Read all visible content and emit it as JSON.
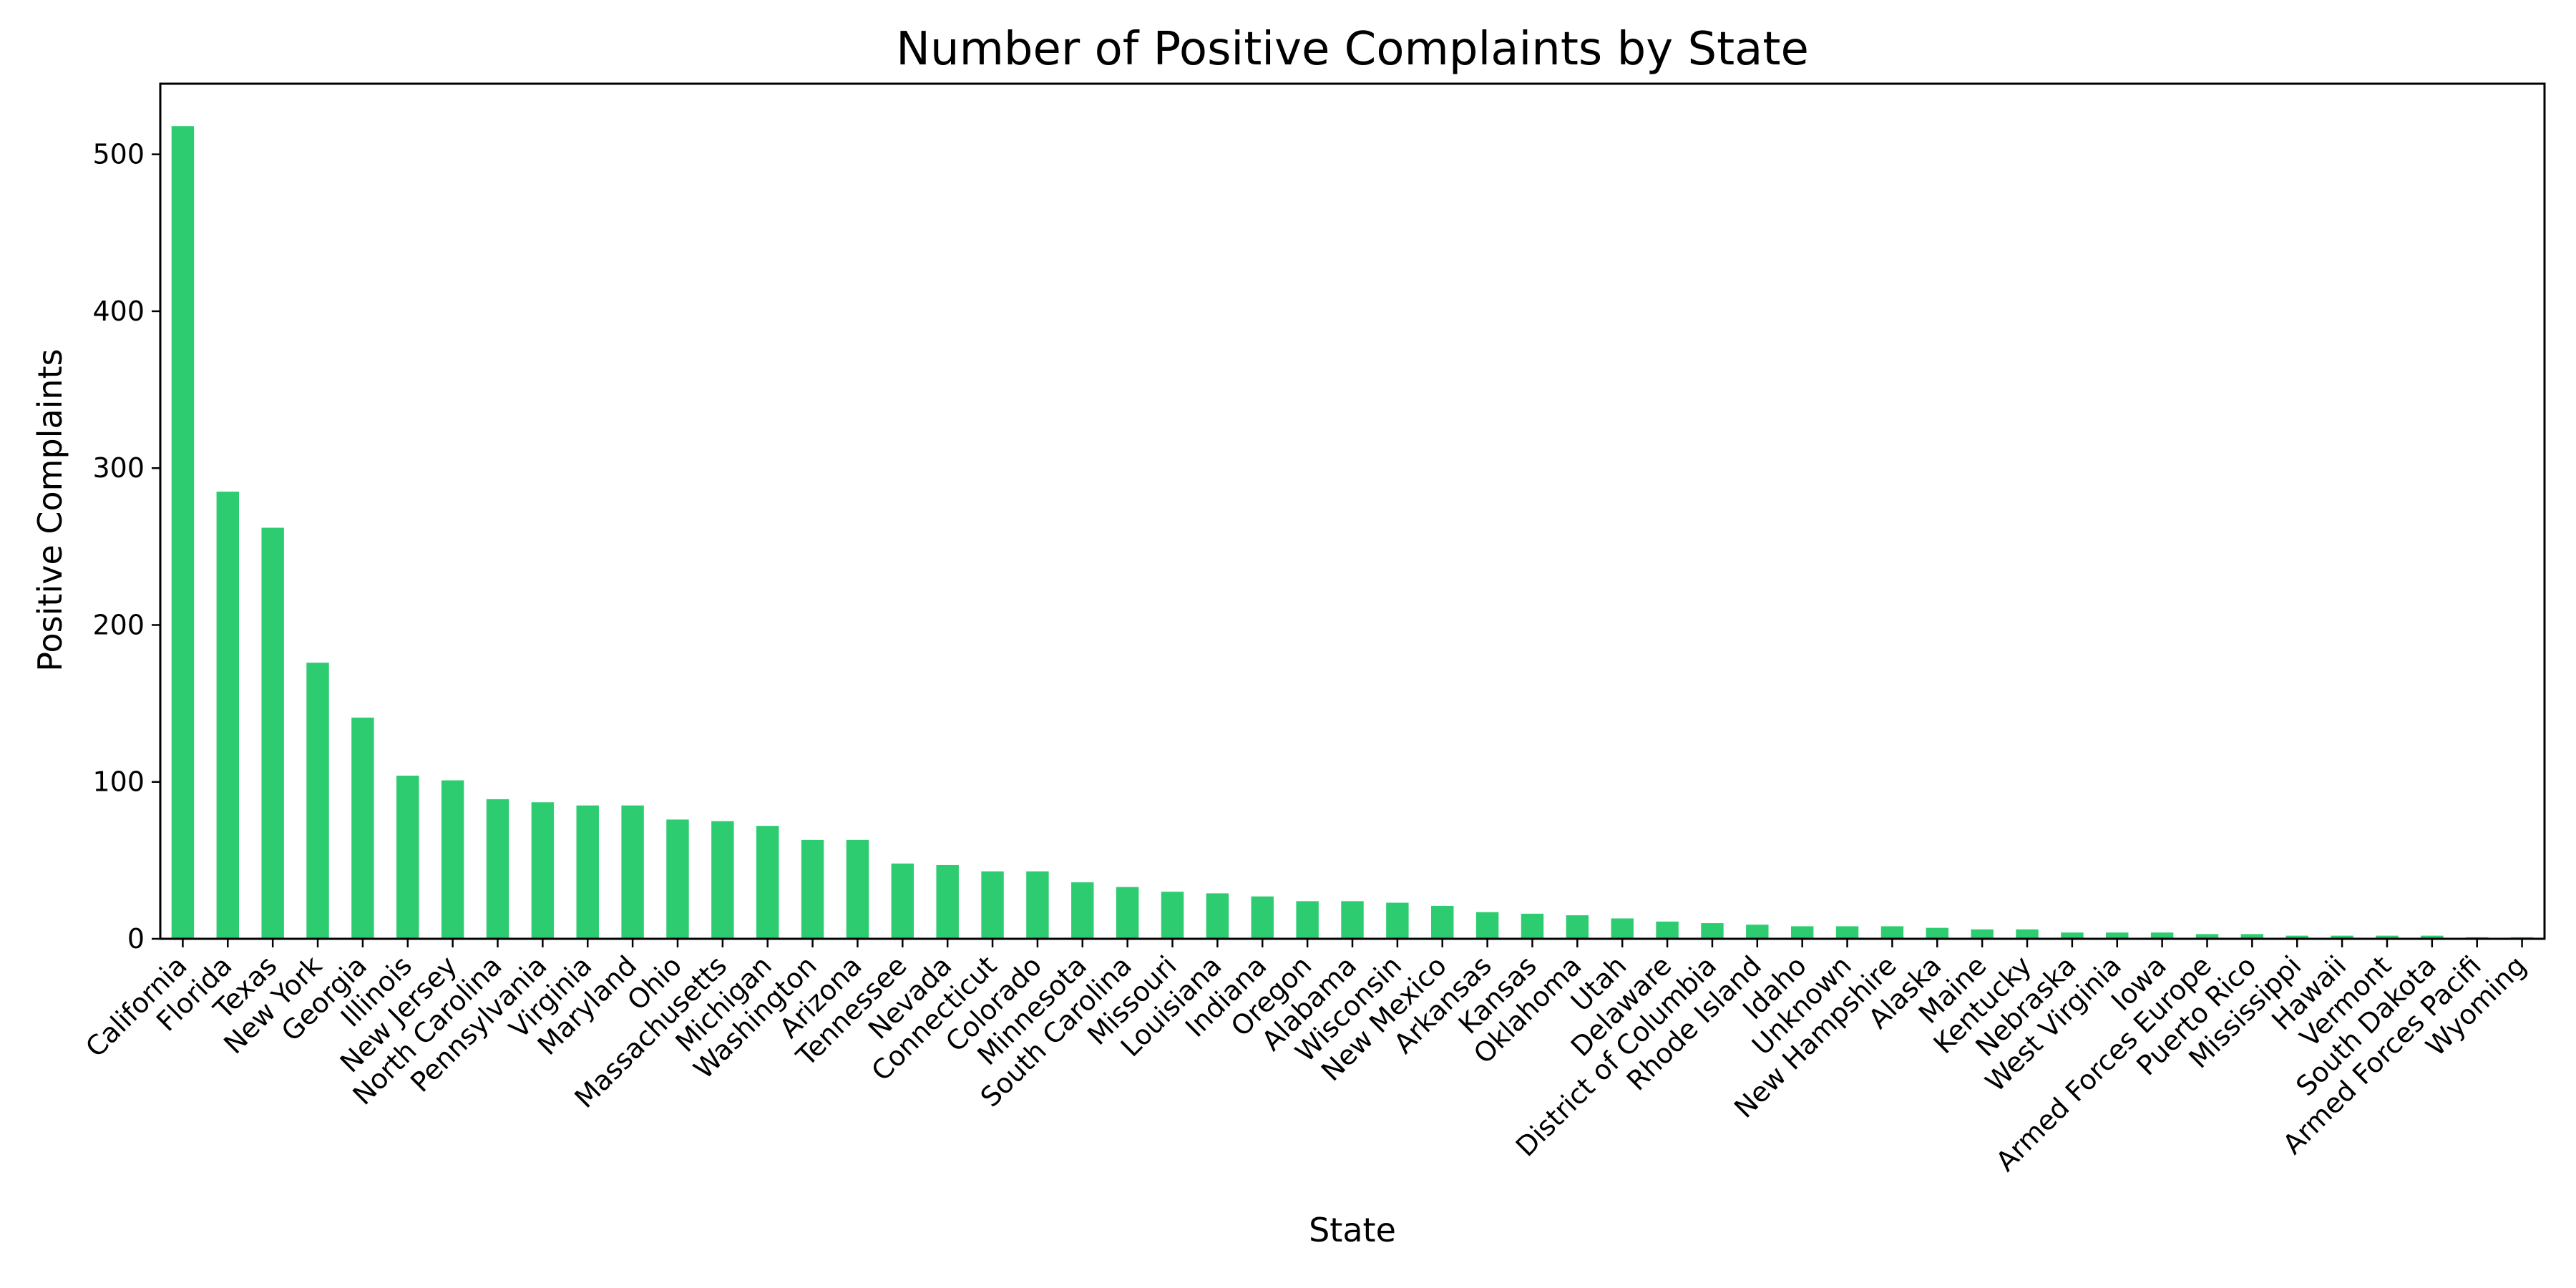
{
  "colors": {
    "bar": "#2ecc71",
    "axis": "#000000",
    "background": "#ffffff"
  },
  "chart_data": {
    "type": "bar",
    "title": "Number of Positive Complaints by State",
    "xlabel": "State",
    "ylabel": "Positive Complaints",
    "ylim": [
      0,
      545
    ],
    "yticks": [
      0,
      100,
      200,
      300,
      400,
      500
    ],
    "grid": false,
    "legend": "none",
    "categories": [
      "California",
      "Florida",
      "Texas",
      "New York",
      "Georgia",
      "Illinois",
      "New Jersey",
      "North Carolina",
      "Pennsylvania",
      "Virginia",
      "Maryland",
      "Ohio",
      "Massachusetts",
      "Michigan",
      "Washington",
      "Arizona",
      "Tennessee",
      "Nevada",
      "Connecticut",
      "Colorado",
      "Minnesota",
      "South Carolina",
      "Missouri",
      "Louisiana",
      "Indiana",
      "Oregon",
      "Alabama",
      "Wisconsin",
      "New Mexico",
      "Arkansas",
      "Kansas",
      "Oklahoma",
      "Utah",
      "Delaware",
      "District of Columbia",
      "Rhode Island",
      "Idaho",
      "Unknown",
      "New Hampshire",
      "Alaska",
      "Maine",
      "Kentucky",
      "Nebraska",
      "West Virginia",
      "Iowa",
      "Armed Forces Europe",
      "Puerto Rico",
      "Mississippi",
      "Hawaii",
      "Vermont",
      "South Dakota",
      "Armed Forces Pacifi",
      "Wyoming"
    ],
    "values": [
      518,
      285,
      262,
      176,
      141,
      104,
      101,
      89,
      87,
      85,
      85,
      76,
      75,
      72,
      63,
      63,
      48,
      47,
      43,
      43,
      36,
      33,
      30,
      29,
      27,
      24,
      24,
      23,
      21,
      17,
      16,
      15,
      13,
      11,
      10,
      9,
      8,
      8,
      8,
      7,
      6,
      6,
      4,
      4,
      4,
      3,
      3,
      2,
      2,
      2,
      2,
      1,
      1
    ]
  }
}
